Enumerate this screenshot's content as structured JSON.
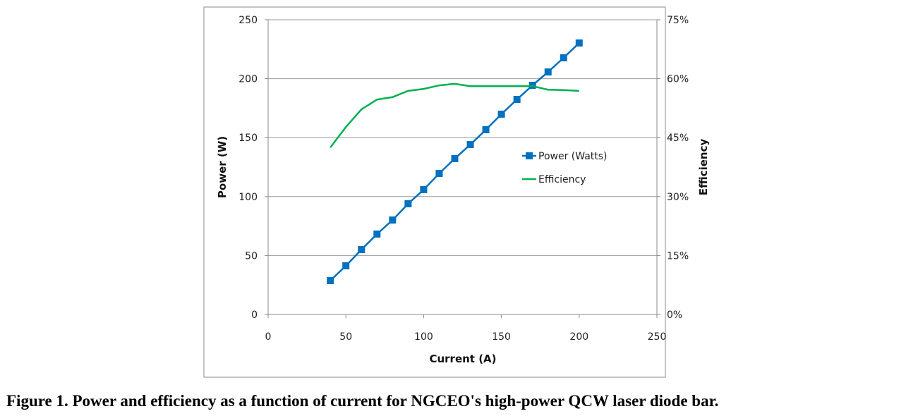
{
  "chart_data": {
    "type": "line",
    "title": "",
    "xlabel": "Current (A)",
    "ylabel": "Power (W)",
    "y2label": "Efficiency",
    "xlim": [
      0,
      250
    ],
    "ylim": [
      0,
      250
    ],
    "y2lim": [
      0,
      75
    ],
    "xticks": [
      "0",
      "50",
      "100",
      "150",
      "200",
      "250"
    ],
    "yticks": [
      "0",
      "50",
      "100",
      "150",
      "200",
      "250"
    ],
    "y2ticks": [
      "0%",
      "15%",
      "30%",
      "45%",
      "60%",
      "75%"
    ],
    "grid": "horizontal",
    "legend_position": "right-middle",
    "x": [
      40,
      50,
      60,
      70,
      80,
      90,
      100,
      110,
      120,
      130,
      140,
      150,
      160,
      170,
      180,
      190,
      200
    ],
    "series": [
      {
        "name": "Power (Watts)",
        "axis": "left",
        "color": "#0070C0",
        "marker": "square",
        "values": [
          28.7,
          41.3,
          55.0,
          68.2,
          80.1,
          93.9,
          105.9,
          119.6,
          132.2,
          144.1,
          156.7,
          169.9,
          182.4,
          194.4,
          205.7,
          217.7,
          230.3
        ]
      },
      {
        "name": "Efficiency",
        "axis": "right",
        "color": "#00B050",
        "marker": "none",
        "values": [
          42.5,
          47.7,
          52.2,
          54.7,
          55.3,
          56.9,
          57.4,
          58.3,
          58.7,
          58.1,
          58.1,
          58.1,
          58.1,
          58.1,
          57.2,
          57.1,
          56.9
        ]
      }
    ]
  },
  "caption": "Figure 1.  Power and efficiency as a function of current for NGCEO's high-power QCW laser diode bar."
}
